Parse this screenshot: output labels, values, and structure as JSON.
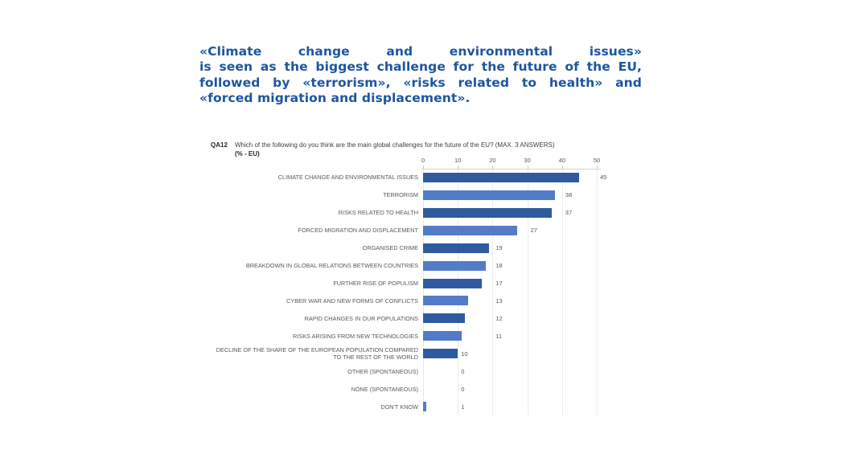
{
  "headline": {
    "lines": [
      "«Climate change and environmental issues»",
      "is seen as the biggest challenge for the future of the EU,",
      "followed by «terrorism», «risks related to health» and",
      "«forced migration and displacement»."
    ],
    "color": "#1d55a1"
  },
  "chart_data": {
    "type": "bar",
    "orientation": "horizontal",
    "question_code": "QA12",
    "question": "Which of the following do you think are the main global challenges for the future of the EU? (MAX. 3 ANSWERS)",
    "subtitle": "(% - EU)",
    "categories": [
      "CLIMATE CHANGE AND ENVIRONMENTAL ISSUES",
      "TERRORISM",
      "RISKS RELATED TO HEALTH",
      "FORCED MIGRATION AND DISPLACEMENT",
      "ORGANISED CRIME",
      "BREAKDOWN IN GLOBAL RELATIONS BETWEEN COUNTRIES",
      "FURTHER RISE OF POPULISM",
      "CYBER WAR AND NEW FORMS OF CONFLICTS",
      "RAPID CHANGES IN OUR POPULATIONS",
      "RISKS ARISING FROM NEW TECHNOLOGIES",
      "DECLINE OF THE SHARE OF THE EUROPEAN POPULATION COMPARED TO THE REST OF THE WORLD",
      "OTHER (SPONTANEOUS)",
      "NONE (SPONTANEOUS)",
      "DON'T KNOW"
    ],
    "values": [
      45,
      38,
      37,
      27,
      19,
      18,
      17,
      13,
      12,
      11,
      10,
      0,
      0,
      1
    ],
    "xlim": [
      0,
      50
    ],
    "ticks": [
      0,
      10,
      20,
      30,
      40,
      50
    ],
    "grid": true,
    "legend": false,
    "value_labels": true,
    "colors": {
      "bar_dark": "#2f5aa0",
      "bar_light": "#527cc8"
    }
  }
}
